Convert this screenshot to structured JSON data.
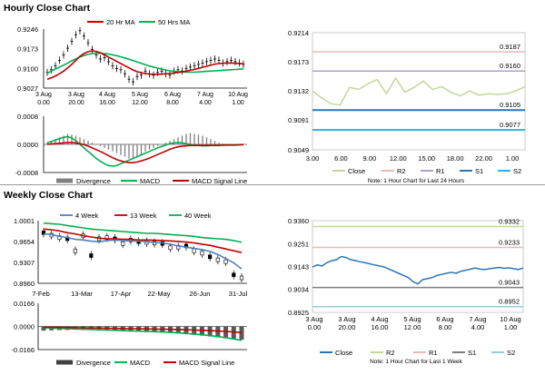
{
  "sections": {
    "hourly_title": "Hourly Close Chart",
    "weekly_title": "Weekly Close Chart"
  },
  "colors": {
    "ma_short": "#c00000",
    "ma_long": "#00b050",
    "ma_mid": "#4f81bd",
    "close_hourly": "#c4d79b",
    "close_weekly": "#2e75b6",
    "r2_hourly": "#e6b9b8",
    "r1_hourly": "#b1a0c7",
    "s1_hourly": "#2e75b6",
    "s2_hourly": "#31b0e0",
    "r2_weekly": "#c4d79b",
    "r1_weekly": "#e6b9b8",
    "s1_weekly": "#7f7f7f",
    "s2_weekly": "#92cddc",
    "divergence": "#808080",
    "macd": "#00b050",
    "signal": "#c00000"
  },
  "chart_data": [
    {
      "id": "hourly_price",
      "type": "line",
      "legend": [
        "20 Hr MA",
        "50 Hrs MA"
      ],
      "yticks": [
        "0.9246",
        "0.9173",
        "0.9100",
        "0.9027"
      ],
      "ylim": [
        0.9027,
        0.9246
      ],
      "xticks": [
        [
          "3 Aug",
          "0.00"
        ],
        [
          "3 Aug",
          "20.00"
        ],
        [
          "4 Aug",
          "16.00"
        ],
        [
          "5 Aug",
          "12.00"
        ],
        [
          "6 Aug",
          "8.00"
        ],
        [
          "7 Aug",
          "4.00"
        ],
        [
          "10 Aug",
          "1.00"
        ]
      ],
      "x": [
        0,
        1,
        2,
        3,
        4,
        5,
        6,
        7,
        8,
        9,
        10,
        11,
        12,
        13,
        14,
        15,
        16,
        17,
        18,
        19,
        20,
        21,
        22,
        23,
        24,
        25,
        26,
        27,
        28,
        29,
        30,
        31,
        32,
        33,
        34,
        35,
        36,
        37,
        38,
        39,
        40,
        41,
        42,
        43,
        44,
        45,
        46,
        47,
        48
      ],
      "close": [
        0.9085,
        0.9095,
        0.911,
        0.913,
        0.915,
        0.9175,
        0.92,
        0.9225,
        0.924,
        0.922,
        0.9195,
        0.917,
        0.915,
        0.9135,
        0.914,
        0.9125,
        0.911,
        0.91,
        0.9095,
        0.908,
        0.906,
        0.905,
        0.907,
        0.9075,
        0.909,
        0.908,
        0.9075,
        0.9085,
        0.909,
        0.908,
        0.9075,
        0.909,
        0.9095,
        0.909,
        0.91,
        0.9105,
        0.911,
        0.9115,
        0.912,
        0.9125,
        0.913,
        0.9135,
        0.913,
        0.912,
        0.9125,
        0.913,
        0.9125,
        0.912,
        0.9115
      ],
      "series": [
        {
          "name": "20 Hr MA",
          "values": [
            0.906,
            0.9065,
            0.9072,
            0.908,
            0.909,
            0.9102,
            0.9115,
            0.913,
            0.9145,
            0.9155,
            0.9162,
            0.9165,
            0.9163,
            0.9158,
            0.915,
            0.9142,
            0.9134,
            0.9126,
            0.9118,
            0.911,
            0.9102,
            0.9094,
            0.9088,
            0.9084,
            0.9081,
            0.9079,
            0.9078,
            0.9078,
            0.9079,
            0.908,
            0.9081,
            0.9083,
            0.9085,
            0.9087,
            0.909,
            0.9093,
            0.9096,
            0.91,
            0.9104,
            0.9108,
            0.9112,
            0.9116,
            0.9118,
            0.9119,
            0.912,
            0.912,
            0.9119,
            0.9118,
            0.9117
          ]
        },
        {
          "name": "50 Hrs MA",
          "values": [
            0.9082,
            0.909,
            0.9098,
            0.9105,
            0.9112,
            0.912,
            0.9128,
            0.9135,
            0.9142,
            0.9148,
            0.9152,
            0.9155,
            0.9156,
            0.9156,
            0.9155,
            0.9153,
            0.915,
            0.9147,
            0.9143,
            0.9139,
            0.9134,
            0.9129,
            0.9124,
            0.9119,
            0.9114,
            0.9109,
            0.9105,
            0.9101,
            0.9097,
            0.9094,
            0.9091,
            0.9089,
            0.9088,
            0.9087,
            0.9086,
            0.9086,
            0.9086,
            0.9087,
            0.9088,
            0.9089,
            0.909,
            0.9091,
            0.9092,
            0.9093,
            0.9094,
            0.9095,
            0.9096,
            0.9097,
            0.9098
          ]
        }
      ]
    },
    {
      "id": "hourly_macd",
      "type": "bar",
      "legend": [
        "Divergence",
        "MACD",
        "MACD Signal Line"
      ],
      "yticks": [
        "0.0008",
        "0.0000",
        "-0.0008"
      ],
      "ylim": [
        -0.0008,
        0.0008
      ],
      "divergence": [
        5e-05,
        0.0001,
        0.00015,
        0.0002,
        0.00025,
        0.0003,
        0.00028,
        0.00025,
        0.0002,
        0.00015,
        0.0001,
        5e-05,
        0.0,
        -5e-05,
        -0.0001,
        -0.00015,
        -0.0002,
        -0.00025,
        -0.0003,
        -0.00035,
        -0.0004,
        -0.0004,
        -0.00035,
        -0.0003,
        -0.0002,
        -0.00015,
        -0.0001,
        -5e-05,
        0.0,
        5e-05,
        0.0001,
        0.00015,
        0.0002,
        0.00025,
        0.0003,
        0.00032,
        0.0003,
        0.00028,
        0.00025,
        0.0002,
        0.00015,
        0.0001,
        5e-05,
        2e-05,
        0.0,
        -2e-05,
        -3e-05,
        -2e-05,
        -1e-05
      ],
      "series": [
        {
          "name": "MACD",
          "values": [
            5e-05,
            8e-05,
            0.00012,
            0.00016,
            0.0002,
            0.00022,
            0.00018,
            0.0001,
            0.0,
            -0.0001,
            -0.0002,
            -0.0003,
            -0.0004,
            -0.00048,
            -0.00055,
            -0.0006,
            -0.00062,
            -0.0006,
            -0.00055,
            -0.0005,
            -0.00045,
            -0.0004,
            -0.00035,
            -0.0003,
            -0.00025,
            -0.0002,
            -0.00015,
            -0.0001,
            -6e-05,
            -2e-05,
            2e-05,
            4e-05,
            5e-05,
            4e-05,
            2e-05,
            0.0,
            -2e-05,
            -3e-05,
            -4e-05,
            -4e-05,
            -3e-05,
            -3e-05,
            -2e-05,
            -2e-05,
            -2e-05,
            -1e-05,
            -1e-05,
            -1e-05,
            0.0
          ]
        },
        {
          "name": "MACD Signal Line",
          "values": [
            0.0,
            1e-05,
            2e-05,
            3e-05,
            4e-05,
            5e-05,
            5e-05,
            4e-05,
            2e-05,
            -1e-05,
            -5e-05,
            -0.0001,
            -0.00015,
            -0.0002,
            -0.00026,
            -0.00032,
            -0.00038,
            -0.00043,
            -0.00047,
            -0.0005,
            -0.00052,
            -0.00052,
            -0.0005,
            -0.00047,
            -0.00043,
            -0.00039,
            -0.00034,
            -0.00029,
            -0.00024,
            -0.00019,
            -0.00014,
            -0.0001,
            -7e-05,
            -5e-05,
            -4e-05,
            -3e-05,
            -3e-05,
            -3e-05,
            -3e-05,
            -3e-05,
            -3e-05,
            -3e-05,
            -3e-05,
            -2e-05,
            -2e-05,
            -2e-05,
            -2e-05,
            -1e-05,
            -1e-05
          ]
        }
      ]
    },
    {
      "id": "hourly_pivot",
      "type": "line",
      "legend": [
        "Close",
        "R2",
        "R1",
        "S1",
        "S2"
      ],
      "note": "Note: 1 Hour Chart for Last 24 Hours",
      "yticks": [
        "0.9214",
        "0.9173",
        "0.9132",
        "0.9091",
        "0.9049"
      ],
      "ylim": [
        0.9049,
        0.9214
      ],
      "xticks": [
        "3.00",
        "6.00",
        "9.00",
        "12.00",
        "15.00",
        "18.00",
        "22.00",
        "1.00"
      ],
      "close": [
        0.9132,
        0.9122,
        0.9114,
        0.9112,
        0.9137,
        0.9134,
        0.9142,
        0.9148,
        0.9128,
        0.915,
        0.913,
        0.9137,
        0.9146,
        0.9134,
        0.9138,
        0.913,
        0.9125,
        0.9132,
        0.9126,
        0.9128,
        0.9127,
        0.9128,
        0.9132,
        0.9138
      ],
      "levels": [
        {
          "name": "R2",
          "value": 0.9187,
          "label": "0.9187"
        },
        {
          "name": "R1",
          "value": 0.916,
          "label": "0.9160"
        },
        {
          "name": "S1",
          "value": 0.9105,
          "label": "0.9105"
        },
        {
          "name": "S2",
          "value": 0.9077,
          "label": "0.9077"
        }
      ]
    },
    {
      "id": "weekly_price",
      "type": "line",
      "legend": [
        "4 Week",
        "13 Week",
        "40 Week"
      ],
      "yticks": [
        "1.0001",
        "0.9654",
        "0.9307",
        "0.8960"
      ],
      "ylim": [
        0.896,
        1.0001
      ],
      "xticks": [
        "7-Feb",
        "13-Mar",
        "17-Apr",
        "22-May",
        "26-Jun",
        "31-Jul"
      ],
      "close": [
        0.98,
        0.976,
        0.972,
        0.97,
        0.95,
        0.975,
        0.942,
        0.97,
        0.972,
        0.97,
        0.962,
        0.968,
        0.965,
        0.964,
        0.963,
        0.962,
        0.955,
        0.956,
        0.958,
        0.95,
        0.946,
        0.94,
        0.935,
        0.932,
        0.91,
        0.905
      ],
      "series": [
        {
          "name": "4 Week",
          "values": [
            0.978,
            0.977,
            0.974,
            0.972,
            0.969,
            0.968,
            0.966,
            0.965,
            0.967,
            0.968,
            0.967,
            0.9665,
            0.966,
            0.965,
            0.964,
            0.963,
            0.961,
            0.958,
            0.956,
            0.954,
            0.952,
            0.949,
            0.944,
            0.937,
            0.93,
            0.92
          ]
        },
        {
          "name": "13 Week",
          "values": [
            0.986,
            0.985,
            0.983,
            0.98,
            0.978,
            0.975,
            0.973,
            0.971,
            0.97,
            0.97,
            0.969,
            0.969,
            0.968,
            0.968,
            0.9675,
            0.967,
            0.9665,
            0.9655,
            0.9645,
            0.963,
            0.961,
            0.959,
            0.956,
            0.953,
            0.95,
            0.947
          ]
        },
        {
          "name": "40 Week",
          "values": [
            0.996,
            0.995,
            0.994,
            0.992,
            0.99,
            0.988,
            0.986,
            0.985,
            0.984,
            0.983,
            0.982,
            0.981,
            0.98,
            0.979,
            0.979,
            0.978,
            0.977,
            0.976,
            0.975,
            0.974,
            0.972,
            0.971,
            0.97,
            0.969,
            0.967,
            0.964
          ]
        }
      ]
    },
    {
      "id": "weekly_macd",
      "type": "bar",
      "legend": [
        "Divergence",
        "MACD",
        "MACD Signal Line"
      ],
      "yticks": [
        "0.0166",
        "0.0000",
        "-0.0166"
      ],
      "ylim": [
        -0.0166,
        0.0166
      ],
      "divergence": [
        -0.003,
        -0.0028,
        -0.0026,
        -0.0025,
        -0.0024,
        -0.0025,
        -0.0026,
        -0.0028,
        -0.003,
        -0.0032,
        -0.0034,
        -0.0036,
        -0.0038,
        -0.004,
        -0.0042,
        -0.0044,
        -0.0046,
        -0.005,
        -0.0055,
        -0.006,
        -0.0066,
        -0.0072,
        -0.0078,
        -0.0085,
        -0.009,
        -0.0095
      ],
      "series": [
        {
          "name": "MACD",
          "values": [
            -0.001,
            -0.0012,
            -0.0014,
            -0.0016,
            -0.0018,
            -0.002,
            -0.0022,
            -0.0024,
            -0.0026,
            -0.0028,
            -0.003,
            -0.0032,
            -0.0034,
            -0.0036,
            -0.0038,
            -0.004,
            -0.0043,
            -0.0046,
            -0.005,
            -0.0055,
            -0.006,
            -0.0066,
            -0.0073,
            -0.0081,
            -0.009,
            -0.01
          ]
        },
        {
          "name": "MACD Signal Line",
          "values": [
            -0.0005,
            -0.0006,
            -0.0007,
            -0.0008,
            -0.0009,
            -0.001,
            -0.0011,
            -0.0012,
            -0.0013,
            -0.0014,
            -0.0015,
            -0.0016,
            -0.0017,
            -0.0018,
            -0.0019,
            -0.002,
            -0.0021,
            -0.0022,
            -0.0024,
            -0.0026,
            -0.0028,
            -0.003,
            -0.0033,
            -0.0036,
            -0.004,
            -0.0044
          ]
        }
      ]
    },
    {
      "id": "weekly_pivot",
      "type": "line",
      "legend": [
        "Close",
        "R2",
        "R1",
        "S1",
        "S2"
      ],
      "note": "Note: 1 Hour Chart for Last 1 Week",
      "yticks": [
        "0.9360",
        "0.9251",
        "0.9143",
        "0.9034",
        "0.8925"
      ],
      "ylim": [
        0.8925,
        0.936
      ],
      "xticks": [
        [
          "3 Aug",
          "0.00"
        ],
        [
          "3 Aug",
          "20.00"
        ],
        [
          "4 Aug",
          "16.00"
        ],
        [
          "5 Aug",
          "12.00"
        ],
        [
          "6 Aug",
          "8.00"
        ],
        [
          "7 Aug",
          "4.00"
        ],
        [
          "10 Aug",
          "1.00"
        ]
      ],
      "close": [
        0.914,
        0.915,
        0.9145,
        0.916,
        0.917,
        0.9175,
        0.919,
        0.9185,
        0.9175,
        0.917,
        0.9165,
        0.916,
        0.9155,
        0.915,
        0.9145,
        0.914,
        0.913,
        0.912,
        0.911,
        0.91,
        0.909,
        0.907,
        0.906,
        0.908,
        0.9085,
        0.909,
        0.91,
        0.9105,
        0.911,
        0.9115,
        0.911,
        0.912,
        0.9125,
        0.913,
        0.9135,
        0.913,
        0.9128,
        0.9132,
        0.9135,
        0.9138,
        0.9134,
        0.9136,
        0.9132,
        0.9128,
        0.9135
      ],
      "levels": [
        {
          "name": "R2",
          "value": 0.9332,
          "label": "0.9332"
        },
        {
          "name": "R1",
          "value": 0.9233,
          "label": "0.9233"
        },
        {
          "name": "S1",
          "value": 0.9043,
          "label": "0.9043"
        },
        {
          "name": "S2",
          "value": 0.8952,
          "label": "0.8952"
        }
      ]
    }
  ]
}
